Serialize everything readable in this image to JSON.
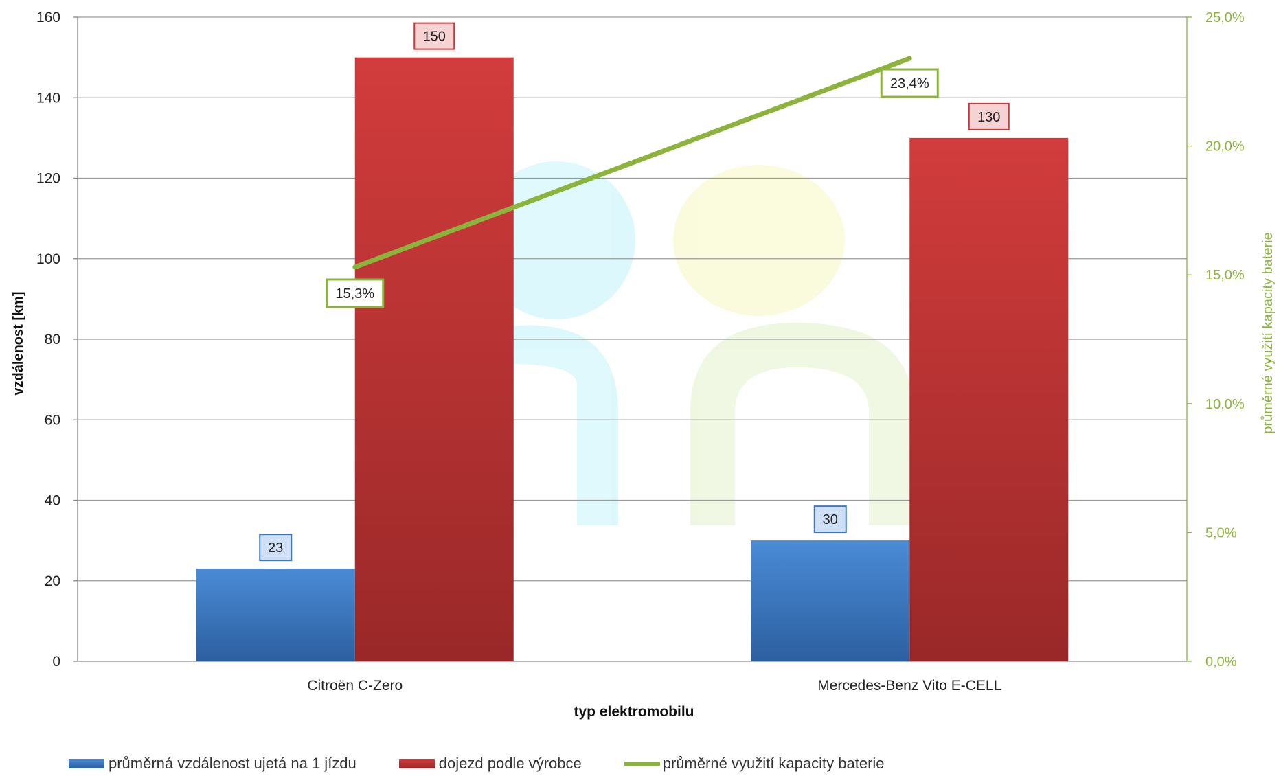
{
  "chart_data": {
    "type": "bar",
    "categories": [
      "Citroën C-Zero",
      "Mercedes-Benz Vito E-CELL"
    ],
    "xlabel": "typ elektromobilu",
    "ylabel": "vzdálenost [km]",
    "y2label": "průměrné využití kapacity baterie",
    "ylim": [
      0,
      160
    ],
    "y_ticks": [
      "0",
      "20",
      "40",
      "60",
      "80",
      "100",
      "120",
      "140",
      "160"
    ],
    "y2lim": [
      0,
      25
    ],
    "y2_ticks": [
      "0,0%",
      "5,0%",
      "10,0%",
      "15,0%",
      "20,0%",
      "25,0%"
    ],
    "grid": true,
    "legend_position": "bottom",
    "series": [
      {
        "name": "průměrná vzdálenost ujetá na 1 jízdu",
        "kind": "bar",
        "axis": "left",
        "color": "#3a78c4",
        "values": [
          23,
          30
        ],
        "labels": [
          "23",
          "30"
        ]
      },
      {
        "name": "dojezd podle výrobce",
        "kind": "bar",
        "axis": "left",
        "color": "#c63838",
        "values": [
          150,
          130
        ],
        "labels": [
          "150",
          "130"
        ]
      },
      {
        "name": "průměrné využití kapacity baterie",
        "kind": "line",
        "axis": "right",
        "color": "#8cb43c",
        "values": [
          15.3,
          23.4
        ],
        "labels": [
          "15,3%",
          "23,4%"
        ]
      }
    ]
  }
}
